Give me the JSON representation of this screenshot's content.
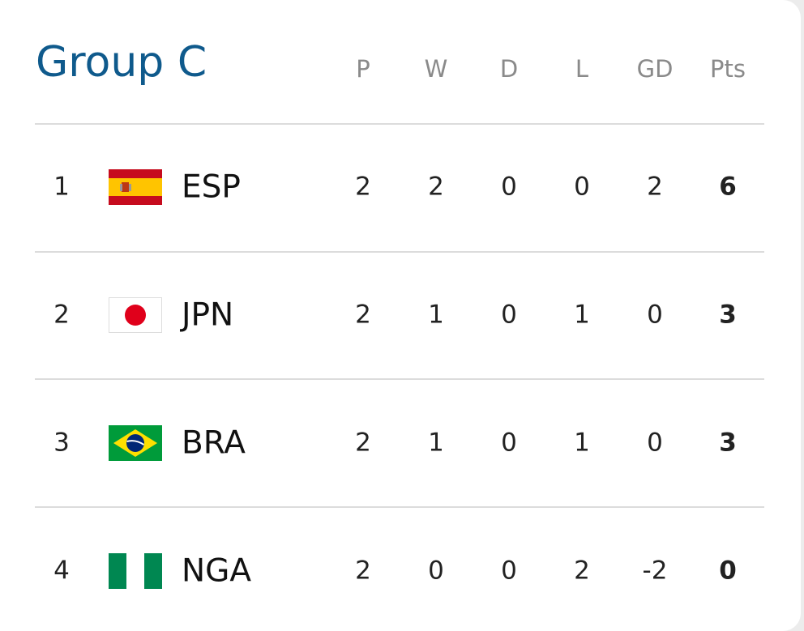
{
  "title": "Group C",
  "columns": [
    "P",
    "W",
    "D",
    "L",
    "GD",
    "Pts"
  ],
  "rows": [
    {
      "rank": 1,
      "team": "ESP",
      "stats": [
        2,
        2,
        0,
        0,
        2,
        6
      ]
    },
    {
      "rank": 2,
      "team": "JPN",
      "stats": [
        2,
        1,
        0,
        1,
        0,
        3
      ]
    },
    {
      "rank": 3,
      "team": "BRA",
      "stats": [
        2,
        1,
        0,
        1,
        0,
        3
      ]
    },
    {
      "rank": 4,
      "team": "NGA",
      "stats": [
        2,
        0,
        0,
        2,
        -2,
        0
      ]
    }
  ]
}
